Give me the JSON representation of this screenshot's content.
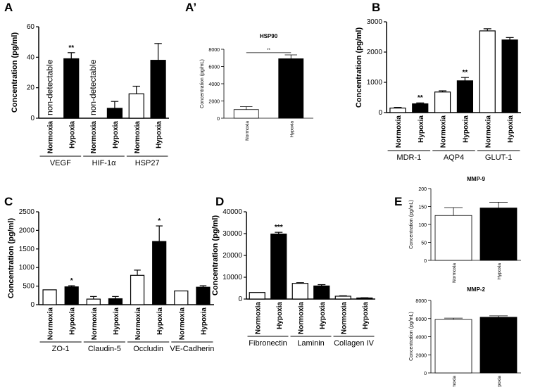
{
  "chart_data": [
    {
      "panel": "A",
      "type": "bar",
      "ylabel": "Concentration (pg/ml)",
      "ylim": [
        0,
        60
      ],
      "yticks": [
        0,
        20,
        40,
        60
      ],
      "bars": [
        {
          "label": "Normoxia",
          "value": 0,
          "err": 0,
          "fill": "#ffffff",
          "sig": "",
          "note": "non-detectable"
        },
        {
          "label": "Hypoxia",
          "value": 39,
          "err": 4,
          "fill": "#000000",
          "sig": "**",
          "note": ""
        },
        {
          "label": "Normoxia",
          "value": 0,
          "err": 0,
          "fill": "#ffffff",
          "sig": "",
          "note": "non-detectable"
        },
        {
          "label": "Hypoxia",
          "value": 6.5,
          "err": 4.5,
          "fill": "#000000",
          "sig": "",
          "note": ""
        },
        {
          "label": "Normoxia",
          "value": 16,
          "err": 5,
          "fill": "#ffffff",
          "sig": "",
          "note": ""
        },
        {
          "label": "Hypoxia",
          "value": 38,
          "err": 11,
          "fill": "#000000",
          "sig": "",
          "note": ""
        }
      ],
      "groups": [
        {
          "label": "VEGF",
          "start": 0,
          "end": 1
        },
        {
          "label": "HIF-1α",
          "start": 2,
          "end": 3
        },
        {
          "label": "HSP27",
          "start": 4,
          "end": 5
        }
      ]
    },
    {
      "panel": "A’",
      "type": "bar",
      "title": "HSP90",
      "ylabel": "Concentration (pg/mL)",
      "ylim": [
        0,
        8000
      ],
      "yticks": [
        0,
        2000,
        4000,
        6000,
        8000
      ],
      "bars": [
        {
          "label": "Normoxia",
          "value": 1000,
          "err": 350,
          "fill": "#ffffff",
          "sig": "",
          "note": ""
        },
        {
          "label": "Hypoxia",
          "value": 6900,
          "err": 450,
          "fill": "#000000",
          "sig": "",
          "note": ""
        }
      ],
      "bracket": {
        "from": 0,
        "to": 1,
        "value": 7600,
        "label": "**"
      },
      "groups": []
    },
    {
      "panel": "B",
      "type": "bar",
      "ylabel": "Concentration (pg/ml)",
      "ylim": [
        0,
        3000
      ],
      "yticks": [
        0,
        1000,
        2000,
        3000
      ],
      "bars": [
        {
          "label": "Normoxia",
          "value": 150,
          "err": 20,
          "fill": "#ffffff",
          "sig": "",
          "note": ""
        },
        {
          "label": "Hypoxia",
          "value": 290,
          "err": 30,
          "fill": "#000000",
          "sig": "**",
          "note": ""
        },
        {
          "label": "Normoxia",
          "value": 680,
          "err": 40,
          "fill": "#ffffff",
          "sig": "",
          "note": ""
        },
        {
          "label": "Hypoxia",
          "value": 1050,
          "err": 110,
          "fill": "#000000",
          "sig": "**",
          "note": ""
        },
        {
          "label": "Normoxia",
          "value": 2700,
          "err": 70,
          "fill": "#ffffff",
          "sig": "",
          "note": ""
        },
        {
          "label": "Hypoxia",
          "value": 2400,
          "err": 80,
          "fill": "#000000",
          "sig": "",
          "note": ""
        }
      ],
      "groups": [
        {
          "label": "MDR-1",
          "start": 0,
          "end": 1
        },
        {
          "label": "AQP4",
          "start": 2,
          "end": 3
        },
        {
          "label": "GLUT-1",
          "start": 4,
          "end": 5
        }
      ]
    },
    {
      "panel": "C",
      "type": "bar",
      "ylabel": "Concentration (pg/ml)",
      "ylim": [
        0,
        2500
      ],
      "yticks": [
        0,
        500,
        1000,
        1500,
        2000,
        2500
      ],
      "bars": [
        {
          "label": "Normoxia",
          "value": 400,
          "err": 0,
          "fill": "#ffffff",
          "sig": "",
          "note": ""
        },
        {
          "label": "Hypoxia",
          "value": 480,
          "err": 30,
          "fill": "#000000",
          "sig": "*",
          "note": ""
        },
        {
          "label": "Normoxia",
          "value": 150,
          "err": 70,
          "fill": "#ffffff",
          "sig": "",
          "note": ""
        },
        {
          "label": "Hypoxia",
          "value": 160,
          "err": 60,
          "fill": "#000000",
          "sig": "",
          "note": ""
        },
        {
          "label": "Normoxia",
          "value": 790,
          "err": 140,
          "fill": "#ffffff",
          "sig": "",
          "note": ""
        },
        {
          "label": "Hypoxia",
          "value": 1700,
          "err": 420,
          "fill": "#000000",
          "sig": "*",
          "note": ""
        },
        {
          "label": "Normoxia",
          "value": 370,
          "err": 0,
          "fill": "#ffffff",
          "sig": "",
          "note": ""
        },
        {
          "label": "Hypoxia",
          "value": 470,
          "err": 40,
          "fill": "#000000",
          "sig": "",
          "note": ""
        }
      ],
      "groups": [
        {
          "label": "ZO-1",
          "start": 0,
          "end": 1
        },
        {
          "label": "Claudin-5",
          "start": 2,
          "end": 3
        },
        {
          "label": "Occludin",
          "start": 4,
          "end": 5
        },
        {
          "label": "VE-Cadherin",
          "start": 6,
          "end": 7
        }
      ]
    },
    {
      "panel": "D",
      "type": "bar",
      "ylabel": "Concentration (pg/ml)",
      "ylim": [
        0,
        40000
      ],
      "yticks": [
        0,
        10000,
        20000,
        30000,
        40000
      ],
      "bars": [
        {
          "label": "Normoxia",
          "value": 3000,
          "err": 0,
          "fill": "#ffffff",
          "sig": "",
          "note": ""
        },
        {
          "label": "Hypoxia",
          "value": 29800,
          "err": 800,
          "fill": "#000000",
          "sig": "***",
          "note": ""
        },
        {
          "label": "Normoxia",
          "value": 7200,
          "err": 300,
          "fill": "#ffffff",
          "sig": "",
          "note": ""
        },
        {
          "label": "Hypoxia",
          "value": 6000,
          "err": 600,
          "fill": "#000000",
          "sig": "",
          "note": ""
        },
        {
          "label": "Normoxia",
          "value": 1300,
          "err": 200,
          "fill": "#ffffff",
          "sig": "",
          "note": ""
        },
        {
          "label": "Hypoxia",
          "value": 500,
          "err": 100,
          "fill": "#000000",
          "sig": "",
          "note": ""
        }
      ],
      "groups": [
        {
          "label": "Fibronectin",
          "start": 0,
          "end": 1
        },
        {
          "label": "Laminin",
          "start": 2,
          "end": 3
        },
        {
          "label": "Collagen IV",
          "start": 4,
          "end": 5
        }
      ]
    },
    {
      "panel": "E",
      "type": "bar",
      "title": "MMP-9",
      "ylabel": "Concentration (pg/mL)",
      "ylim": [
        0,
        200
      ],
      "yticks": [
        0,
        50,
        100,
        150,
        200
      ],
      "bars": [
        {
          "label": "Normoxia",
          "value": 125,
          "err": 22,
          "fill": "#ffffff",
          "sig": "",
          "note": ""
        },
        {
          "label": "Hypoxia",
          "value": 146,
          "err": 16,
          "fill": "#000000",
          "sig": "",
          "note": ""
        }
      ],
      "groups": []
    },
    {
      "panel": "",
      "type": "bar",
      "title": "MMP-2",
      "ylabel": "Concentration (pg/mL)",
      "ylim": [
        0,
        8000
      ],
      "yticks": [
        0,
        2000,
        4000,
        6000,
        8000
      ],
      "bars": [
        {
          "label": "Normoxia",
          "value": 5900,
          "err": 150,
          "fill": "#ffffff",
          "sig": "",
          "note": ""
        },
        {
          "label": "Hypoxia",
          "value": 6150,
          "err": 150,
          "fill": "#000000",
          "sig": "",
          "note": ""
        }
      ],
      "groups": []
    }
  ]
}
